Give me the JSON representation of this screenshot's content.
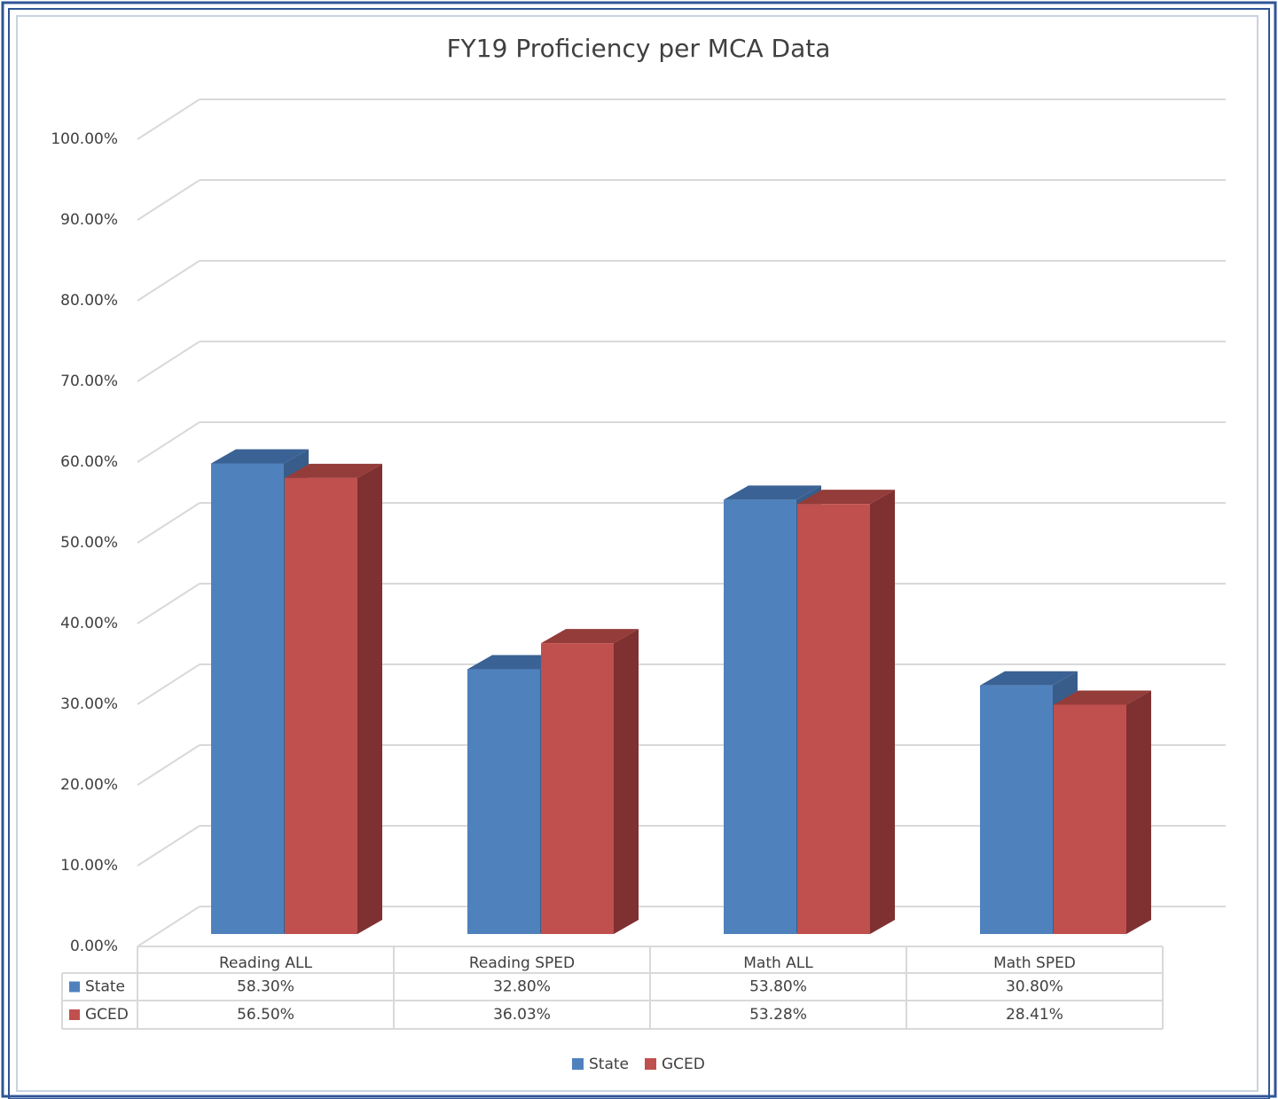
{
  "chart_data": {
    "type": "bar3d",
    "title": "FY19 Proficiency per MCA Data",
    "categories": [
      "Reading ALL",
      "Reading SPED",
      "Math ALL",
      "Math SPED"
    ],
    "series": [
      {
        "name": "State",
        "color": "#4f81bd",
        "values": [
          58.3,
          32.8,
          53.8,
          30.8
        ],
        "value_labels": [
          "58.30%",
          "32.80%",
          "53.80%",
          "30.80%"
        ]
      },
      {
        "name": "GCED",
        "color": "#c0504d",
        "values": [
          56.5,
          36.03,
          53.28,
          28.41
        ],
        "value_labels": [
          "56.50%",
          "36.03%",
          "53.28%",
          "28.41%"
        ]
      }
    ],
    "ylim": [
      0,
      100
    ],
    "yticks": [
      {
        "value": 0,
        "label": "0.00%"
      },
      {
        "value": 10,
        "label": "10.00%"
      },
      {
        "value": 20,
        "label": "20.00%"
      },
      {
        "value": 30,
        "label": "30.00%"
      },
      {
        "value": 40,
        "label": "40.00%"
      },
      {
        "value": 50,
        "label": "50.00%"
      },
      {
        "value": 60,
        "label": "60.00%"
      },
      {
        "value": 70,
        "label": "70.00%"
      },
      {
        "value": 80,
        "label": "80.00%"
      },
      {
        "value": 90,
        "label": "90.00%"
      },
      {
        "value": 100,
        "label": "100.00%"
      }
    ],
    "grid": true,
    "legend": "bottom"
  }
}
